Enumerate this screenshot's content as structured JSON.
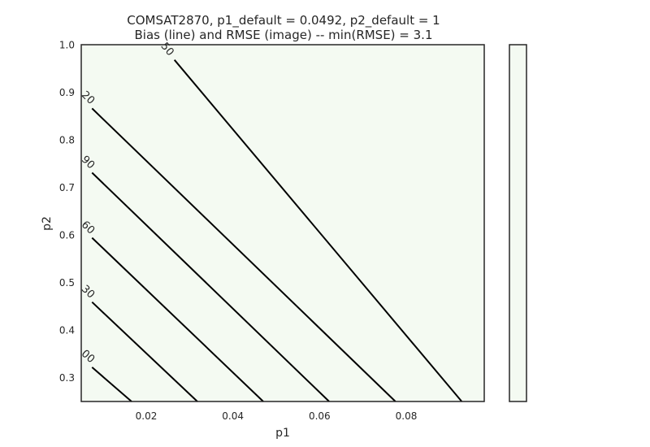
{
  "chart_data": {
    "type": "contour",
    "title_line1": "COMSAT2870, p1_default = 0.0492, p2_default = 1",
    "title_line2": "Bias (line) and RMSE (image) -- min(RMSE) = 3.1",
    "xlabel": "p1",
    "ylabel": "p2",
    "xlim": [
      0.005,
      0.098
    ],
    "ylim": [
      0.25,
      1.0
    ],
    "xticks": [
      {
        "value": 0.02,
        "label": "0.02"
      },
      {
        "value": 0.04,
        "label": "0.04"
      },
      {
        "value": 0.06,
        "label": "0.06"
      },
      {
        "value": 0.08,
        "label": "0.08"
      }
    ],
    "yticks": [
      {
        "value": 0.3,
        "label": "0.3"
      },
      {
        "value": 0.4,
        "label": "0.4"
      },
      {
        "value": 0.5,
        "label": "0.5"
      },
      {
        "value": 0.6,
        "label": "0.6"
      },
      {
        "value": 0.7,
        "label": "0.7"
      },
      {
        "value": 0.8,
        "label": "0.8"
      },
      {
        "value": 0.9,
        "label": "0.9"
      },
      {
        "value": 1.0,
        "label": "1.0"
      }
    ],
    "image_fill": "#f4faf2",
    "line_color": "#000000",
    "colorbar": {
      "fill": "#f4faf2"
    },
    "grid": false,
    "contours": [
      {
        "label": "00",
        "points": [
          [
            0.0075,
            0.322
          ],
          [
            0.0166,
            0.25
          ]
        ],
        "label_at": [
          0.0065,
          0.344
        ]
      },
      {
        "label": "30",
        "points": [
          [
            0.0075,
            0.459
          ],
          [
            0.0318,
            0.25
          ]
        ],
        "label_at": [
          0.0065,
          0.48
        ]
      },
      {
        "label": "60",
        "points": [
          [
            0.0075,
            0.594
          ],
          [
            0.047,
            0.25
          ]
        ],
        "label_at": [
          0.0065,
          0.615
        ]
      },
      {
        "label": "90",
        "points": [
          [
            0.0075,
            0.731
          ],
          [
            0.0622,
            0.25
          ]
        ],
        "label_at": [
          0.0065,
          0.752
        ]
      },
      {
        "label": "20",
        "points": [
          [
            0.0075,
            0.866
          ],
          [
            0.0775,
            0.25
          ]
        ],
        "label_at": [
          0.0065,
          0.888
        ]
      },
      {
        "label": "50",
        "points": [
          [
            0.0265,
            0.968
          ],
          [
            0.0928,
            0.25
          ]
        ],
        "label_at": [
          0.0248,
          0.99
        ]
      }
    ]
  }
}
